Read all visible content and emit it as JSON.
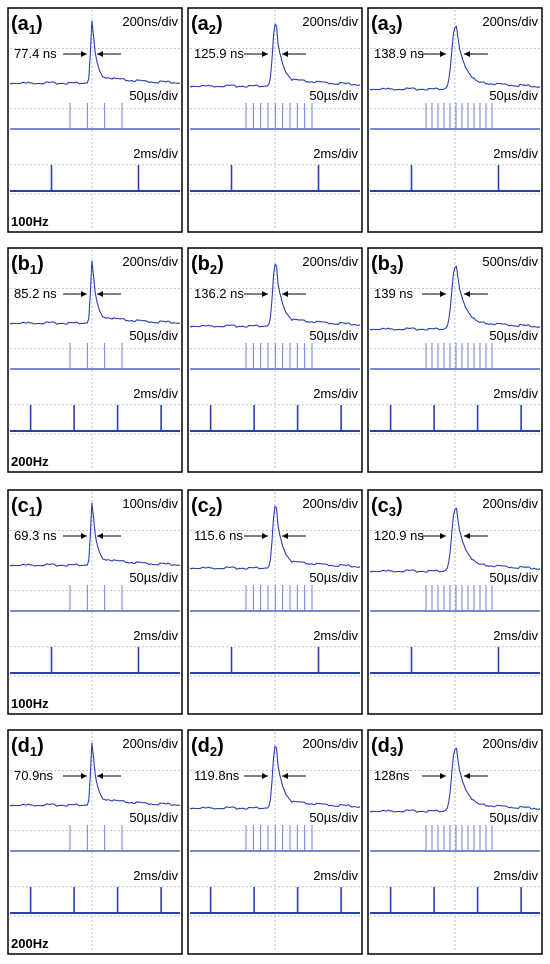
{
  "chart_data": {
    "type": "line",
    "description_of_rows": "four rows of oscilloscope panels; each row has three panels",
    "rows": [
      {
        "frequency_label": "100Hz",
        "panels": [
          {
            "label_letter": "a",
            "label_index": "1",
            "pulse_width": "77.4 ns",
            "timebase_top": "200ns/div",
            "timebase_mid": "50µs/div",
            "timebase_bottom": "2ms/div",
            "burst_pulse_count": 4,
            "train_pulse_count": 2
          },
          {
            "label_letter": "a",
            "label_index": "2",
            "pulse_width": "125.9 ns",
            "timebase_top": "200ns/div",
            "timebase_mid": "50µs/div",
            "timebase_bottom": "2ms/div",
            "burst_pulse_count": 10,
            "train_pulse_count": 2
          },
          {
            "label_letter": "a",
            "label_index": "3",
            "pulse_width": "138.9 ns",
            "timebase_top": "200ns/div",
            "timebase_mid": "50µs/div",
            "timebase_bottom": "2ms/div",
            "burst_pulse_count": 12,
            "train_pulse_count": 2
          }
        ]
      },
      {
        "frequency_label": "200Hz",
        "panels": [
          {
            "label_letter": "b",
            "label_index": "1",
            "pulse_width": "85.2 ns",
            "timebase_top": "200ns/div",
            "timebase_mid": "50µs/div",
            "timebase_bottom": "2ms/div",
            "burst_pulse_count": 4,
            "train_pulse_count": 4
          },
          {
            "label_letter": "b",
            "label_index": "2",
            "pulse_width": "136.2 ns",
            "timebase_top": "200ns/div",
            "timebase_mid": "50µs/div",
            "timebase_bottom": "2ms/div",
            "burst_pulse_count": 10,
            "train_pulse_count": 4
          },
          {
            "label_letter": "b",
            "label_index": "3",
            "pulse_width": "139 ns",
            "timebase_top": "500ns/div",
            "timebase_mid": "50µs/div",
            "timebase_bottom": "2ms/div",
            "burst_pulse_count": 12,
            "train_pulse_count": 4
          }
        ]
      },
      {
        "frequency_label": "100Hz",
        "panels": [
          {
            "label_letter": "c",
            "label_index": "1",
            "pulse_width": "69.3 ns",
            "timebase_top": "100ns/div",
            "timebase_mid": "50µs/div",
            "timebase_bottom": "2ms/div",
            "burst_pulse_count": 4,
            "train_pulse_count": 2
          },
          {
            "label_letter": "c",
            "label_index": "2",
            "pulse_width": "115.6 ns",
            "timebase_top": "200ns/div",
            "timebase_mid": "50µs/div",
            "timebase_bottom": "2ms/div",
            "burst_pulse_count": 10,
            "train_pulse_count": 2
          },
          {
            "label_letter": "c",
            "label_index": "3",
            "pulse_width": "120.9 ns",
            "timebase_top": "200ns/div",
            "timebase_mid": "50µs/div",
            "timebase_bottom": "2ms/div",
            "burst_pulse_count": 12,
            "train_pulse_count": 2
          }
        ]
      },
      {
        "frequency_label": "200Hz",
        "panels": [
          {
            "label_letter": "d",
            "label_index": "1",
            "pulse_width": "70.9ns",
            "timebase_top": "200ns/div",
            "timebase_mid": "50µs/div",
            "timebase_bottom": "2ms/div",
            "burst_pulse_count": 4,
            "train_pulse_count": 4
          },
          {
            "label_letter": "d",
            "label_index": "2",
            "pulse_width": "119.8ns",
            "timebase_top": "200ns/div",
            "timebase_mid": "50µs/div",
            "timebase_bottom": "2ms/div",
            "burst_pulse_count": 10,
            "train_pulse_count": 4
          },
          {
            "label_letter": "d",
            "label_index": "3",
            "pulse_width": "128ns",
            "timebase_top": "200ns/div",
            "timebase_mid": "50µs/div",
            "timebase_bottom": "2ms/div",
            "burst_pulse_count": 12,
            "train_pulse_count": 4
          }
        ]
      }
    ]
  },
  "colors": {
    "trace": "#2b3fb0",
    "trace_light": "#6f7fd6",
    "frame": "#000000",
    "grid": "#9aa6b8",
    "marker": "#9fd0e6",
    "background": "#ffffff"
  }
}
